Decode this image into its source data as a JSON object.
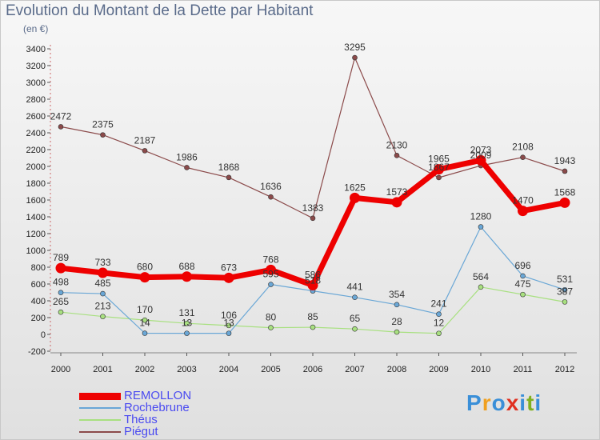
{
  "title": "Evolution du Montant de la Dette par Habitant",
  "subtitle": "(en €)",
  "logo": {
    "text": "Proxiti",
    "colors": [
      "#3a8fd8",
      "#f0a020",
      "#3a8fd8",
      "#e03020",
      "#3a8fd8",
      "#80b020",
      "#3a8fd8"
    ]
  },
  "chart_data": {
    "type": "line",
    "x": [
      "2000",
      "2001",
      "2002",
      "2003",
      "2004",
      "2005",
      "2006",
      "2007",
      "2008",
      "2009",
      "2010",
      "2011",
      "2012"
    ],
    "ylim": [
      -200,
      3400
    ],
    "yticks": [
      "-200",
      "0",
      "200",
      "400",
      "600",
      "800",
      "1000",
      "1200",
      "1400",
      "1600",
      "1800",
      "2000",
      "2200",
      "2400",
      "2600",
      "2800",
      "3000",
      "3200",
      "3400"
    ],
    "grid": false,
    "legend_position": "bottom-left",
    "series": [
      {
        "name": "REMOLLON",
        "color": "#ee0000",
        "values": [
          789,
          733,
          680,
          688,
          673,
          768,
          586,
          1625,
          1573,
          1965,
          2073,
          1470,
          1568
        ],
        "labels": [
          "789",
          "733",
          "680",
          "688",
          "673",
          "768",
          "586",
          "1625",
          "1573",
          "1965",
          "2073",
          "1470",
          "1568"
        ]
      },
      {
        "name": "Rochebrune",
        "color": "#6aa7d6",
        "values": [
          498,
          485,
          14,
          13,
          13,
          595,
          518,
          441,
          354,
          241,
          1280,
          696,
          531
        ],
        "labels": [
          "498",
          "485",
          "14",
          "13",
          "13",
          "595",
          "518",
          "441",
          "354",
          "241",
          "1280",
          "696",
          "531"
        ]
      },
      {
        "name": "Théus",
        "color": "#a8e080",
        "values": [
          265,
          213,
          170,
          131,
          106,
          80,
          85,
          65,
          28,
          12,
          564,
          475,
          387
        ],
        "labels": [
          "265",
          "213",
          "170",
          "131",
          "106",
          "80",
          "85",
          "65",
          "28",
          "12",
          "564",
          "475",
          "387"
        ]
      },
      {
        "name": "Piégut",
        "color": "#8b4a4a",
        "values": [
          2472,
          2375,
          2187,
          1986,
          1868,
          1636,
          1383,
          3295,
          2130,
          1867,
          2009,
          2108,
          1943
        ],
        "labels": [
          "2472",
          "2375",
          "2187",
          "1986",
          "1868",
          "1636",
          "1383",
          "3295",
          "2130",
          "1867",
          "2009",
          "2108",
          "1943"
        ]
      }
    ]
  }
}
